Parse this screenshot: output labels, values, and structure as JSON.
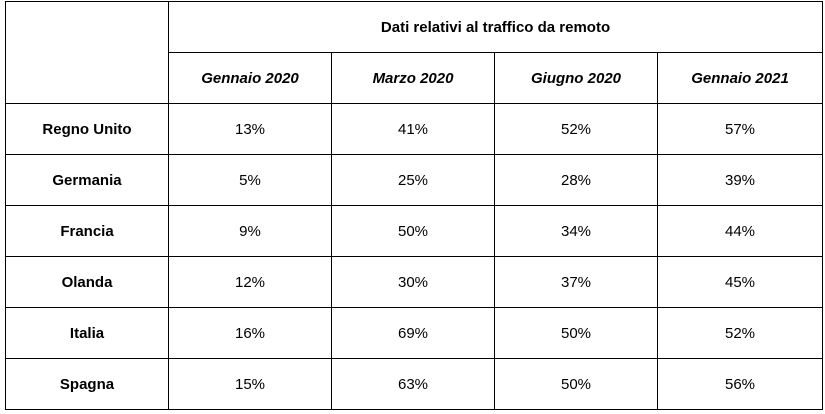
{
  "table": {
    "title": "Dati relativi al traffico da remoto",
    "columns": [
      "Gennaio 2020",
      "Marzo 2020",
      "Giugno 2020",
      "Gennaio 2021"
    ],
    "rows": [
      {
        "country": "Regno Unito",
        "values": [
          "13%",
          "41%",
          "52%",
          "57%"
        ]
      },
      {
        "country": "Germania",
        "values": [
          "5%",
          "25%",
          "28%",
          "39%"
        ]
      },
      {
        "country": "Francia",
        "values": [
          "9%",
          "50%",
          "34%",
          "44%"
        ]
      },
      {
        "country": "Olanda",
        "values": [
          "12%",
          "30%",
          "37%",
          "45%"
        ]
      },
      {
        "country": "Italia",
        "values": [
          "16%",
          "69%",
          "50%",
          "52%"
        ]
      },
      {
        "country": "Spagna",
        "values": [
          "15%",
          "63%",
          "50%",
          "56%"
        ]
      }
    ]
  }
}
